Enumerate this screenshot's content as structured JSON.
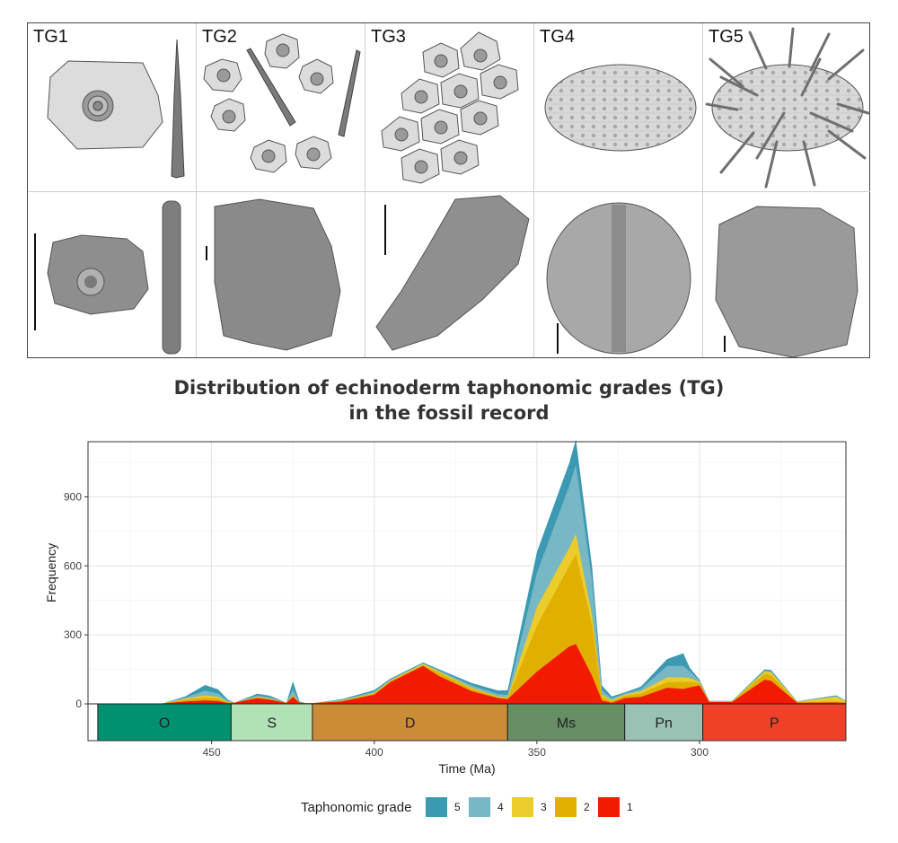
{
  "panel": {
    "grades": [
      "TG1",
      "TG2",
      "TG3",
      "TG4",
      "TG5"
    ]
  },
  "title_lines": [
    "Distribution of echinoderm taphonomic grades (TG)",
    "in the fossil record"
  ],
  "colors": {
    "tg5": "#3b9ab2",
    "tg4": "#78b7c5",
    "tg3": "#ebcc2a",
    "tg2": "#e1af00",
    "tg1": "#f21a00"
  },
  "periods": [
    {
      "label": "O",
      "start": 485,
      "end": 444,
      "color": "#009270"
    },
    {
      "label": "S",
      "start": 444,
      "end": 419,
      "color": "#b3e1b6"
    },
    {
      "label": "D",
      "start": 419,
      "end": 359,
      "color": "#cb8c37"
    },
    {
      "label": "Ms",
      "start": 359,
      "end": 323,
      "color": "#678f66"
    },
    {
      "label": "Pn",
      "start": 323,
      "end": 299,
      "color": "#99c2b5"
    },
    {
      "label": "P",
      "start": 299,
      "end": 252,
      "color": "#f04028"
    }
  ],
  "chart_data": {
    "type": "area",
    "stacked": true,
    "xlabel": "Time (Ma)",
    "ylabel": "Frequency",
    "xlim": [
      488,
      255
    ],
    "x_reversed": true,
    "ylim": [
      0,
      1140
    ],
    "xticks": [
      450,
      400,
      350,
      300
    ],
    "yticks": [
      0,
      300,
      600,
      900
    ],
    "grid": true,
    "legend": {
      "title": "Taphonomic grade",
      "position": "bottom"
    },
    "x": [
      485,
      470,
      465,
      458,
      452,
      448,
      445,
      443,
      436,
      432,
      427,
      425,
      423,
      421,
      419,
      410,
      400,
      395,
      385,
      380,
      370,
      362,
      359,
      350,
      340,
      338,
      333,
      330,
      327,
      323,
      318,
      310,
      305,
      303,
      300,
      297,
      290,
      280,
      278,
      270,
      258,
      255
    ],
    "series": [
      {
        "name": "1",
        "values": [
          0,
          0,
          2,
          10,
          15,
          12,
          4,
          5,
          25,
          18,
          4,
          30,
          5,
          3,
          3,
          10,
          40,
          95,
          165,
          120,
          55,
          25,
          20,
          140,
          250,
          260,
          120,
          15,
          5,
          25,
          30,
          70,
          65,
          72,
          80,
          8,
          8,
          105,
          100,
          5,
          6,
          4
        ]
      },
      {
        "name": "2",
        "values": [
          0,
          0,
          0,
          8,
          12,
          10,
          3,
          0,
          4,
          3,
          1,
          5,
          1,
          0,
          0,
          3,
          5,
          5,
          5,
          15,
          10,
          5,
          5,
          200,
          350,
          390,
          220,
          15,
          6,
          10,
          15,
          25,
          30,
          25,
          10,
          2,
          2,
          25,
          25,
          2,
          5,
          3
        ]
      },
      {
        "name": "3",
        "values": [
          0,
          0,
          0,
          5,
          10,
          8,
          2,
          0,
          2,
          2,
          0,
          3,
          0,
          0,
          0,
          2,
          3,
          3,
          4,
          5,
          5,
          3,
          4,
          80,
          80,
          90,
          40,
          10,
          5,
          5,
          10,
          20,
          20,
          15,
          5,
          1,
          1,
          10,
          12,
          2,
          20,
          5
        ]
      },
      {
        "name": "4",
        "values": [
          0,
          0,
          0,
          5,
          20,
          15,
          4,
          0,
          5,
          5,
          0,
          25,
          2,
          0,
          0,
          2,
          5,
          3,
          3,
          5,
          10,
          10,
          10,
          150,
          270,
          300,
          150,
          20,
          8,
          5,
          10,
          50,
          50,
          30,
          5,
          1,
          1,
          5,
          5,
          1,
          3,
          2
        ]
      },
      {
        "name": "5",
        "values": [
          0,
          0,
          0,
          5,
          25,
          18,
          5,
          0,
          8,
          7,
          0,
          35,
          3,
          0,
          0,
          3,
          7,
          4,
          3,
          5,
          10,
          15,
          20,
          90,
          100,
          110,
          60,
          20,
          8,
          5,
          10,
          30,
          55,
          15,
          5,
          1,
          1,
          5,
          5,
          1,
          3,
          1
        ]
      }
    ]
  }
}
